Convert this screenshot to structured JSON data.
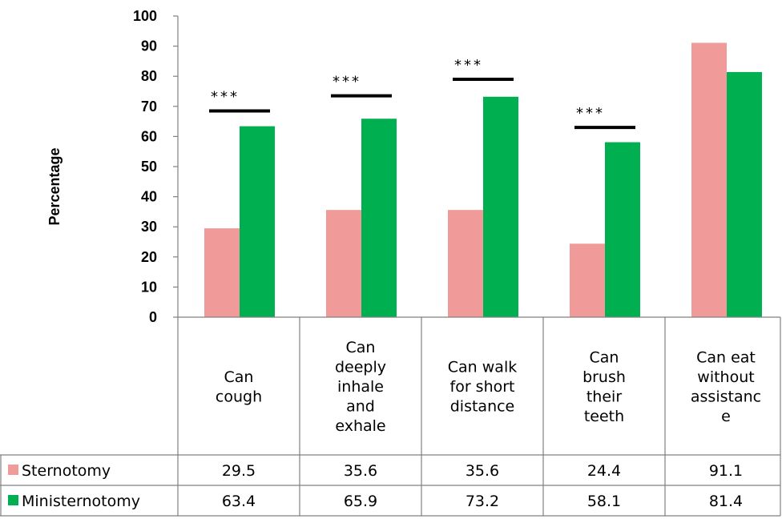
{
  "chart_data": {
    "type": "bar",
    "categories": [
      [
        "Can",
        "cough"
      ],
      [
        "Can",
        "deeply",
        "inhale",
        "and",
        "exhale"
      ],
      [
        "Can walk",
        "for short",
        "distance"
      ],
      [
        "Can",
        "brush",
        "their",
        "teeth"
      ],
      [
        "Can eat",
        "without",
        "assistanc",
        "e"
      ]
    ],
    "series": [
      {
        "name": "Sternotomy",
        "color": "#f09a9a",
        "values": [
          29.5,
          35.6,
          35.6,
          24.4,
          91.1
        ],
        "labels": [
          "29.5",
          "35.6",
          "35.6",
          "24.4",
          "91.1"
        ]
      },
      {
        "name": "Ministernotomy",
        "color": "#00b050",
        "values": [
          63.4,
          65.9,
          73.2,
          58.1,
          81.4
        ],
        "labels": [
          "63.4",
          "65.9",
          "73.2",
          "58.1",
          "81.4"
        ]
      }
    ],
    "ylabel": "Percentage",
    "ylim": [
      0,
      100
    ],
    "yticks": [
      "0",
      "10",
      "20",
      "30",
      "40",
      "50",
      "60",
      "70",
      "80",
      "90",
      "100"
    ],
    "significance": [
      {
        "category_index": 0,
        "label": "***",
        "level": 68.5
      },
      {
        "category_index": 1,
        "label": "***",
        "level": 73.5
      },
      {
        "category_index": 2,
        "label": "***",
        "level": 79
      },
      {
        "category_index": 3,
        "label": "***",
        "level": 63
      }
    ],
    "legend": "data table rows",
    "grid": false
  }
}
